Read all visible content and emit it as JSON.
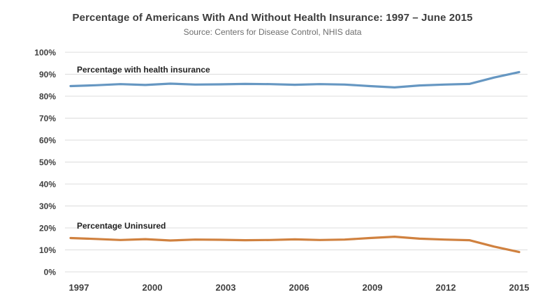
{
  "chart_data": {
    "type": "line",
    "title": "Percentage of Americans With And Without Health Insurance: 1997 – June 2015",
    "subtitle": "Source: Centers for Disease Control, NHIS data",
    "x": [
      1997,
      1998,
      1999,
      2000,
      2001,
      2002,
      2003,
      2004,
      2005,
      2006,
      2007,
      2008,
      2009,
      2010,
      2011,
      2012,
      2013,
      2014,
      2015
    ],
    "x_tick_labels": [
      "1997",
      "2000",
      "2003",
      "2006",
      "2009",
      "2012",
      "2015"
    ],
    "ylim": [
      0,
      100
    ],
    "y_ticks": [
      "0%",
      "10%",
      "20%",
      "30%",
      "40%",
      "50%",
      "60%",
      "70%",
      "80%",
      "90%",
      "100%"
    ],
    "grid": "horizontal",
    "legend": "inline-labels",
    "series": [
      {
        "name": "Percentage with health insurance",
        "color": "#6697C2",
        "values": [
          84.6,
          85.0,
          85.5,
          85.1,
          85.7,
          85.3,
          85.4,
          85.6,
          85.5,
          85.2,
          85.5,
          85.3,
          84.6,
          84.0,
          84.9,
          85.3,
          85.6,
          88.5,
          91.0
        ]
      },
      {
        "name": "Percentage Uninsured",
        "color": "#D0813F",
        "values": [
          15.4,
          15.0,
          14.5,
          14.9,
          14.3,
          14.7,
          14.6,
          14.4,
          14.5,
          14.8,
          14.5,
          14.7,
          15.4,
          16.0,
          15.1,
          14.7,
          14.4,
          11.5,
          9.0
        ]
      }
    ]
  },
  "colors": {
    "gridline": "#DCDCDC",
    "title_text": "#3d3d3d",
    "subtitle_text": "#6d6d6d",
    "axis_text": "#404040"
  }
}
